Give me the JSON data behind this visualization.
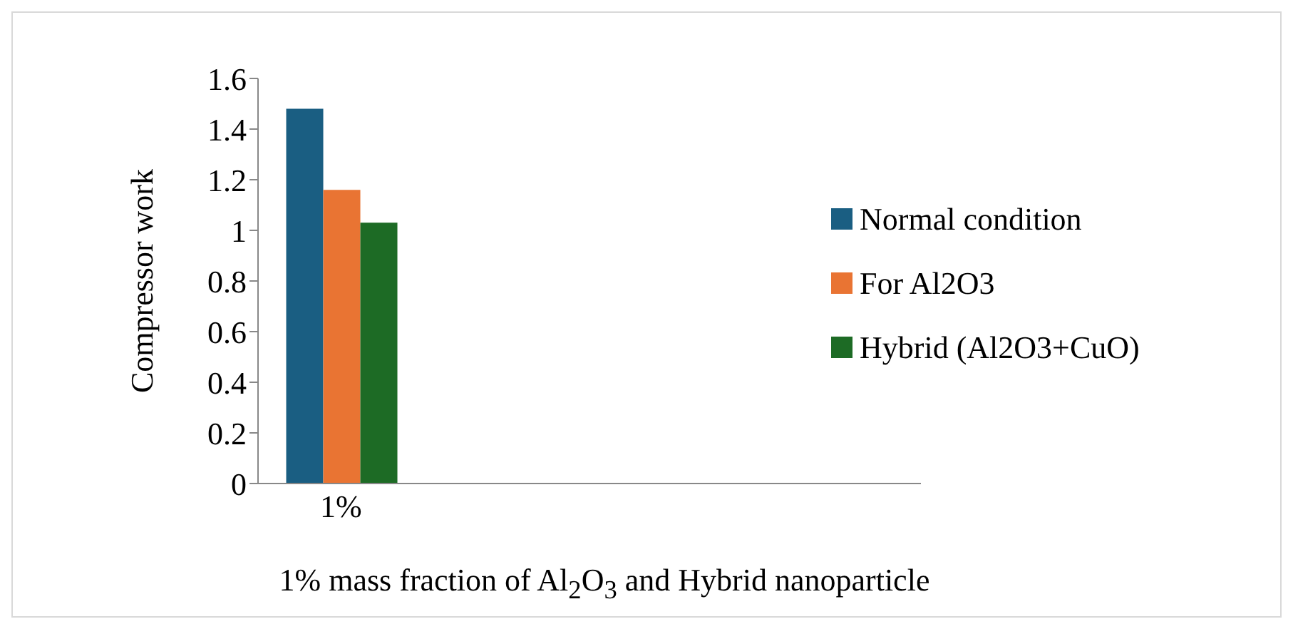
{
  "chart_data": {
    "type": "bar",
    "xlabel": "1% mass fraction of Al$_{2}$O$_{3}$  and Hybrid nanoparticle",
    "ylabel": "Compressor work",
    "categories": [
      "1%",
      null,
      null,
      null
    ],
    "series": [
      {
        "name": "Normal condition",
        "color": "#1a5e82",
        "values": [
          1.48,
          null,
          null,
          null
        ]
      },
      {
        "name": "For Al2O3",
        "color": "#e97433",
        "values": [
          1.16,
          null,
          null,
          null
        ]
      },
      {
        "name": "Hybrid (Al2O3+CuO)",
        "color": "#1d6b25",
        "values": [
          1.03,
          null,
          null,
          null
        ]
      }
    ],
    "ylim": [
      0,
      1.6
    ],
    "yticks": [
      0,
      0.2,
      0.4,
      0.6,
      0.8,
      1,
      1.2,
      1.4,
      1.6
    ],
    "legend": "right"
  }
}
